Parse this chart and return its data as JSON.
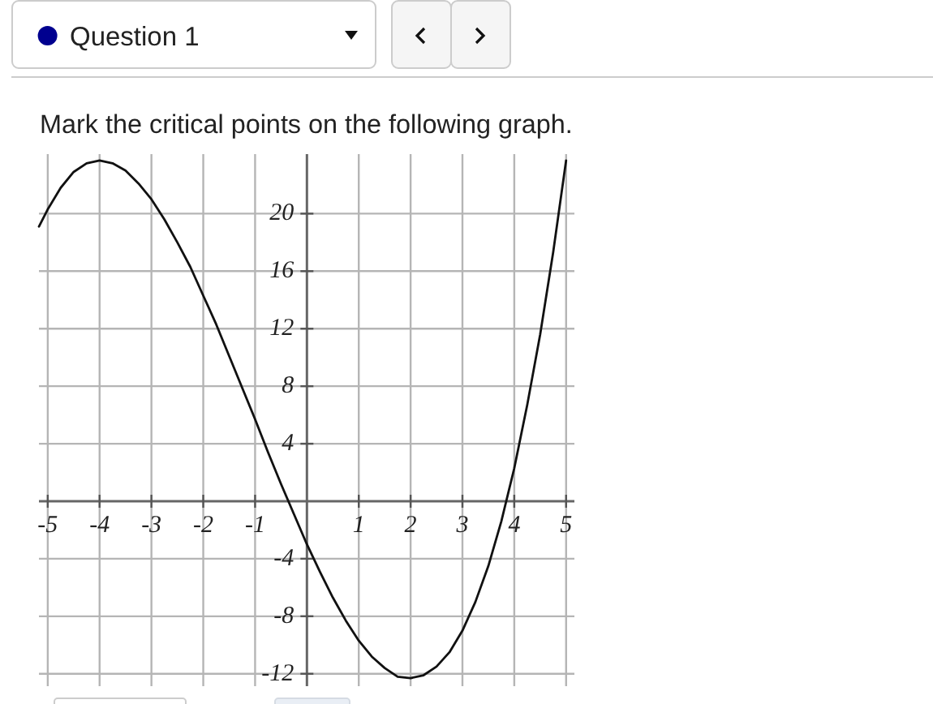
{
  "chart_data": {
    "type": "line",
    "title": "Mark the critical points on the following graph.",
    "annotations": [
      "Question 1"
    ],
    "x": [
      -5.17,
      -5,
      -4.75,
      -4.5,
      -4.25,
      -4,
      -3.75,
      -3.5,
      -3.25,
      -3,
      -2.75,
      -2.5,
      -2.25,
      -2,
      -1.75,
      -1.5,
      -1.25,
      -1,
      -0.75,
      -0.5,
      -0.25,
      0,
      0.25,
      0.5,
      0.75,
      1,
      1.25,
      1.5,
      1.75,
      2,
      2.25,
      2.5,
      2.75,
      3,
      3.25,
      3.5,
      3.75,
      4,
      4.25,
      4.5,
      4.75,
      5
    ],
    "series": [
      {
        "color": "#111111",
        "values": [
          19.1,
          20.3,
          21.8,
          22.9,
          23.5,
          23.7,
          23.5,
          23.0,
          22.1,
          21.0,
          19.6,
          18.0,
          16.3,
          14.3,
          12.3,
          10.1,
          7.9,
          5.7,
          3.4,
          1.2,
          -0.9,
          -3.0,
          -4.9,
          -6.7,
          -8.3,
          -9.7,
          -10.8,
          -11.6,
          -12.2,
          -12.3,
          -12.1,
          -11.5,
          -10.5,
          -9.0,
          -7.0,
          -4.5,
          -1.4,
          2.3,
          6.7,
          11.6,
          17.3,
          23.7
        ]
      }
    ],
    "xlim": [
      -5.17,
      5.16
    ],
    "ylim": [
      -12.86,
      24.14
    ],
    "xticks": [
      -5,
      -4,
      -3,
      -2,
      -1,
      1,
      2,
      3,
      4,
      5
    ],
    "yticks": [
      -12,
      -8,
      -4,
      4,
      8,
      12,
      16,
      20
    ],
    "grid": true
  }
}
